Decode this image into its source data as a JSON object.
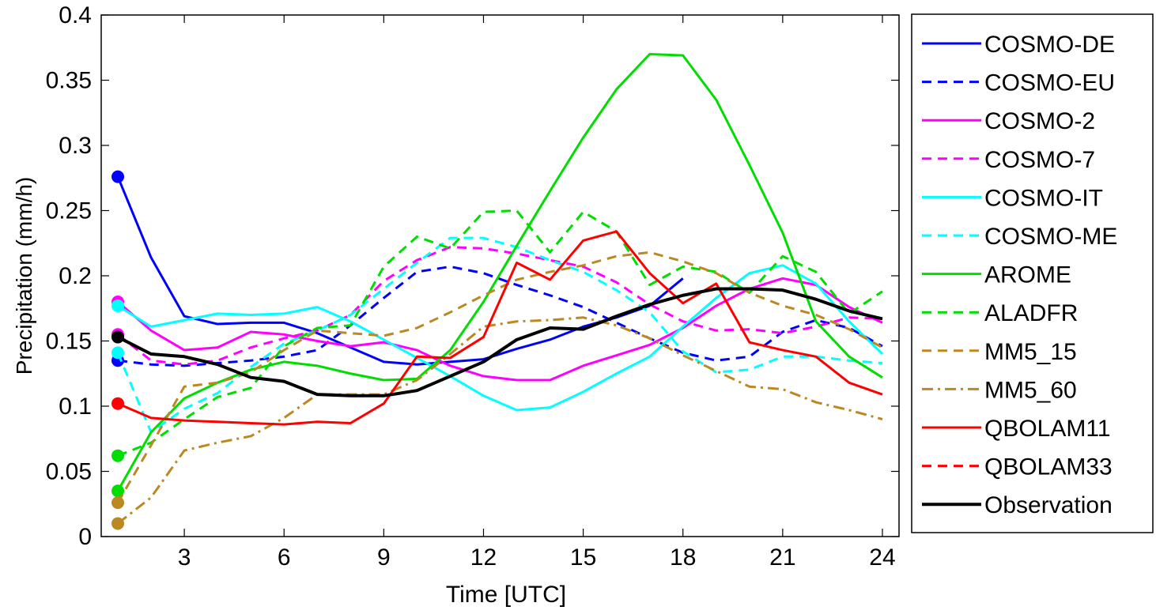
{
  "chart_data": {
    "type": "line",
    "title": "",
    "xlabel": "Time [UTC]",
    "ylabel": "Precipitation (mm/h)",
    "xlim": [
      0.5,
      24.5
    ],
    "ylim": [
      0,
      0.4
    ],
    "xticks": [
      3,
      6,
      9,
      12,
      15,
      18,
      21,
      24
    ],
    "yticks": [
      0,
      0.05,
      0.1,
      0.15,
      0.2,
      0.25,
      0.3,
      0.35,
      0.4
    ],
    "ytick_labels": [
      "0",
      "0.05",
      "0.1",
      "0.15",
      "0.2",
      "0.25",
      "0.3",
      "0.35",
      "0.4"
    ],
    "grid": false,
    "legend_position": "outside-right",
    "x": [
      1,
      2,
      3,
      4,
      5,
      6,
      7,
      8,
      9,
      10,
      11,
      12,
      13,
      14,
      15,
      16,
      17,
      18,
      19,
      20,
      21,
      22,
      23,
      24
    ],
    "series": [
      {
        "name": "COSMO-DE",
        "color": "#0000ff",
        "dash": "solid",
        "values": [
          0.276,
          0.214,
          0.169,
          0.163,
          0.164,
          0.164,
          0.156,
          0.145,
          0.134,
          0.132,
          0.134,
          0.136,
          0.144,
          0.151,
          0.161,
          0.168,
          0.177,
          0.198,
          null,
          null,
          null,
          null,
          null,
          null
        ]
      },
      {
        "name": "COSMO-EU",
        "color": "#0000ff",
        "dash": "dashed",
        "values": [
          0.135,
          0.132,
          0.131,
          0.133,
          0.135,
          0.138,
          0.143,
          0.162,
          0.183,
          0.203,
          0.207,
          0.202,
          0.193,
          0.185,
          0.176,
          0.164,
          0.152,
          0.141,
          0.135,
          0.138,
          0.157,
          0.166,
          0.16,
          0.146
        ]
      },
      {
        "name": "COSMO-2",
        "color": "#ff00ff",
        "dash": "solid",
        "values": [
          0.18,
          0.158,
          0.143,
          0.145,
          0.157,
          0.155,
          0.15,
          0.146,
          0.149,
          0.143,
          0.131,
          0.123,
          0.12,
          0.12,
          0.131,
          0.139,
          0.147,
          0.16,
          0.177,
          0.19,
          0.198,
          0.193,
          0.176,
          0.164
        ]
      },
      {
        "name": "COSMO-7",
        "color": "#ff00ff",
        "dash": "dashed",
        "values": [
          0.155,
          0.135,
          0.132,
          0.135,
          0.145,
          0.152,
          0.158,
          0.17,
          0.196,
          0.212,
          0.222,
          0.221,
          0.217,
          0.212,
          0.207,
          0.195,
          0.178,
          0.165,
          0.158,
          0.159,
          0.156,
          0.161,
          0.168,
          0.167
        ]
      },
      {
        "name": "COSMO-IT",
        "color": "#00ffff",
        "dash": "solid",
        "values": [
          0.177,
          0.161,
          0.166,
          0.171,
          0.17,
          0.171,
          0.176,
          0.165,
          0.151,
          0.137,
          0.123,
          0.108,
          0.097,
          0.099,
          0.111,
          0.125,
          0.138,
          0.161,
          0.183,
          0.202,
          0.208,
          0.194,
          0.165,
          0.14
        ]
      },
      {
        "name": "COSMO-ME",
        "color": "#00ffff",
        "dash": "dashed",
        "values": [
          0.141,
          0.08,
          0.098,
          0.11,
          0.13,
          0.148,
          0.158,
          0.17,
          0.19,
          0.21,
          0.229,
          0.229,
          0.222,
          0.212,
          0.203,
          0.189,
          0.172,
          0.142,
          0.126,
          0.128,
          0.138,
          0.138,
          0.135,
          0.133
        ]
      },
      {
        "name": "AROME",
        "color": "#00dd00",
        "dash": "solid",
        "values": [
          0.035,
          0.08,
          0.106,
          0.118,
          0.128,
          0.134,
          0.131,
          0.125,
          0.12,
          0.121,
          0.143,
          0.18,
          0.223,
          0.265,
          0.306,
          0.343,
          0.37,
          0.369,
          0.335,
          0.285,
          0.233,
          0.165,
          0.138,
          0.122
        ]
      },
      {
        "name": "ALADFR",
        "color": "#00dd00",
        "dash": "dashed",
        "values": [
          0.062,
          0.072,
          0.09,
          0.107,
          0.114,
          0.146,
          0.16,
          0.162,
          0.207,
          0.23,
          0.221,
          0.249,
          0.25,
          0.218,
          0.249,
          0.234,
          0.193,
          0.207,
          0.203,
          0.187,
          0.215,
          0.203,
          0.171,
          0.188
        ]
      },
      {
        "name": "MM5_15",
        "color": "#bb8822",
        "dash": "dashed",
        "values": [
          0.026,
          0.07,
          0.115,
          0.118,
          0.126,
          0.143,
          0.158,
          0.156,
          0.154,
          0.16,
          0.172,
          0.185,
          0.197,
          0.203,
          0.208,
          0.215,
          0.218,
          0.211,
          0.202,
          0.187,
          0.177,
          0.17,
          0.159,
          0.145
        ]
      },
      {
        "name": "MM5_60",
        "color": "#bb8822",
        "dash": "dashdot",
        "values": [
          0.01,
          0.03,
          0.066,
          0.072,
          0.077,
          0.091,
          0.109,
          0.109,
          0.109,
          0.12,
          0.14,
          0.161,
          0.165,
          0.166,
          0.168,
          0.162,
          0.152,
          0.139,
          0.127,
          0.115,
          0.113,
          0.103,
          0.097,
          0.09
        ]
      },
      {
        "name": "QBOLAM11",
        "color": "#ff0000",
        "dash": "solid",
        "values": [
          0.102,
          0.091,
          0.089,
          0.088,
          0.087,
          0.086,
          0.088,
          0.087,
          0.102,
          0.138,
          0.137,
          0.153,
          0.21,
          0.197,
          0.227,
          0.234,
          0.202,
          0.179,
          0.194,
          0.149,
          0.143,
          0.138,
          0.118,
          0.109
        ]
      },
      {
        "name": "QBOLAM33",
        "color": "#ff0000",
        "dash": "dashed",
        "values": [
          null,
          null,
          null,
          null,
          null,
          null,
          null,
          null,
          null,
          null,
          null,
          null,
          null,
          null,
          null,
          null,
          null,
          null,
          null,
          null,
          null,
          null,
          null,
          null
        ]
      },
      {
        "name": "Observation",
        "color": "#000000",
        "dash": "solid",
        "thick": true,
        "values": [
          0.153,
          0.14,
          0.138,
          0.132,
          0.122,
          0.119,
          0.109,
          0.108,
          0.108,
          0.112,
          0.123,
          0.134,
          0.151,
          0.16,
          0.159,
          0.169,
          0.178,
          0.185,
          0.19,
          0.19,
          0.189,
          0.182,
          0.173,
          0.167
        ]
      }
    ]
  }
}
